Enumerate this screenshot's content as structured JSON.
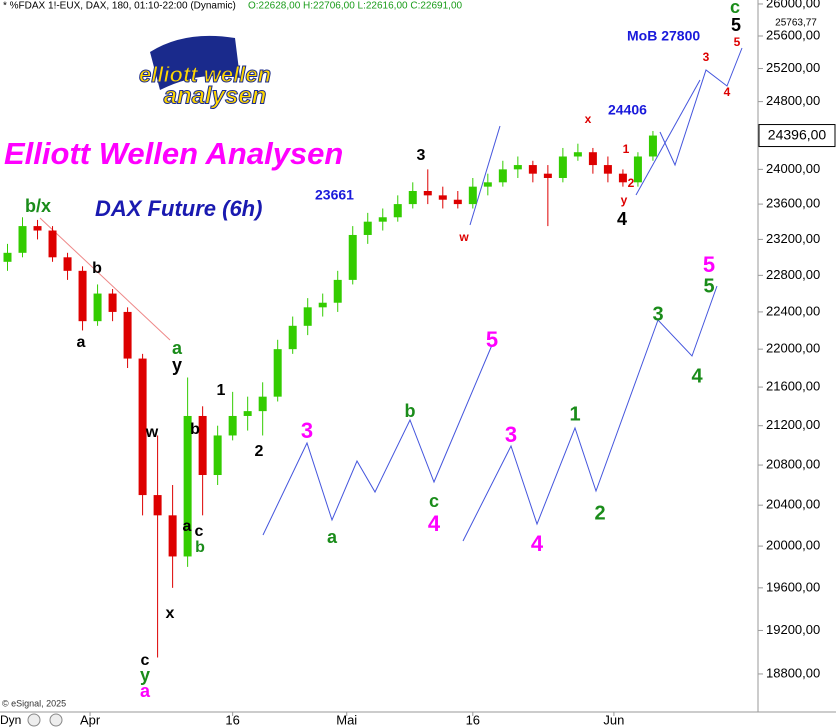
{
  "chart_data": {
    "type": "candlestick",
    "header": {
      "symbol": "* %FDAX 1!-EUX, DAX, 180, 01:10-22:00 (Dynamic)",
      "ohlc": "O:22628,00 H:22706,00 L:22616,00 C:22691,00"
    },
    "title": "Elliott Wellen Analysen",
    "subtitle": "DAX Future (6h)",
    "logo": [
      "elliott wellen",
      "analysen"
    ],
    "copyright": "© eSignal, 2025",
    "mode_label": "Dyn",
    "annotations": [
      "23661",
      "24406",
      "MoB 27800"
    ],
    "annotation_color": "#1a1adb",
    "title_color": "#ff00ff",
    "subtitle_color": "#1a1ab0",
    "up_color": "#33cc00",
    "down_color": "#dd0000",
    "log_scale": true,
    "open": [
      22950,
      23050,
      23350,
      23300,
      23000,
      22850,
      22300,
      22600,
      22400,
      21900,
      20500,
      20300,
      19900,
      21300,
      20700,
      21100,
      21300,
      21350,
      21500,
      22000,
      22250,
      22450,
      22500,
      22750,
      23250,
      23400,
      23450,
      23600,
      23750,
      23700,
      23650,
      23600,
      23800,
      23850,
      24000,
      24050,
      23950,
      23900,
      24150,
      24200,
      24050,
      23950,
      23850,
      24150
    ],
    "high": [
      23150,
      23450,
      23420,
      23350,
      23050,
      22900,
      22700,
      22650,
      22450,
      21950,
      21100,
      20600,
      21700,
      21400,
      21200,
      21550,
      21500,
      21650,
      22100,
      22350,
      22550,
      22600,
      22850,
      23350,
      23500,
      23550,
      23700,
      23850,
      24000,
      23800,
      23750,
      23900,
      23950,
      24100,
      24150,
      24100,
      24050,
      24250,
      24300,
      24250,
      24150,
      24000,
      24200,
      24450
    ],
    "low": [
      22850,
      23000,
      23200,
      22950,
      22750,
      22200,
      22250,
      22300,
      21800,
      20300,
      18950,
      19600,
      19800,
      20300,
      20600,
      21050,
      21150,
      21100,
      21450,
      21950,
      22150,
      22350,
      22400,
      22700,
      23150,
      23300,
      23400,
      23550,
      23600,
      23550,
      23550,
      23550,
      23700,
      23800,
      23900,
      23850,
      23350,
      23850,
      24100,
      23950,
      23850,
      23800,
      23800,
      24100
    ],
    "close": [
      23050,
      23350,
      23300,
      23000,
      22850,
      22300,
      22600,
      22400,
      21900,
      20500,
      20300,
      19900,
      21300,
      20700,
      21100,
      21300,
      21350,
      21500,
      22000,
      22250,
      22450,
      22500,
      22750,
      23250,
      23400,
      23450,
      23600,
      23750,
      23700,
      23650,
      23600,
      23800,
      23850,
      24000,
      24050,
      23950,
      23900,
      24150,
      24200,
      24050,
      23950,
      23850,
      24150,
      24396
    ],
    "last_price": {
      "value": 24396,
      "label": "24396,00"
    },
    "marker_price": {
      "value": 25763.77,
      "label": "25763,77"
    },
    "xlim": [
      -0.5,
      50
    ],
    "xticks": [
      {
        "value": 5.5,
        "label": "Apr"
      },
      {
        "value": 15,
        "label": "16"
      },
      {
        "value": 22.6,
        "label": "Mai"
      },
      {
        "value": 31,
        "label": "16"
      },
      {
        "value": 40.4,
        "label": "Jun"
      }
    ],
    "ylim": [
      18457,
      26050
    ],
    "yticks": [
      {
        "value": 26000,
        "label": "26000,00"
      },
      {
        "value": 25600,
        "label": "25600,00"
      },
      {
        "value": 25200,
        "label": "25200,00"
      },
      {
        "value": 24800,
        "label": "24800,00"
      },
      {
        "value": 24000,
        "label": "24000,00"
      },
      {
        "value": 23600,
        "label": "23600,00"
      },
      {
        "value": 23200,
        "label": "23200,00"
      },
      {
        "value": 22800,
        "label": "22800,00"
      },
      {
        "value": 22400,
        "label": "22400,00"
      },
      {
        "value": 22000,
        "label": "22000,00"
      },
      {
        "value": 21600,
        "label": "21600,00"
      },
      {
        "value": 21200,
        "label": "21200,00"
      },
      {
        "value": 20800,
        "label": "20800,00"
      },
      {
        "value": 20400,
        "label": "20400,00"
      },
      {
        "value": 20000,
        "label": "20000,00"
      },
      {
        "value": 19600,
        "label": "19600,00"
      },
      {
        "value": 19200,
        "label": "19200,00"
      },
      {
        "value": 18800,
        "label": "18800,00"
      }
    ],
    "wave_labels": [
      {
        "text": "b/x",
        "color": "#1a8c1a"
      },
      {
        "text": "b",
        "color": "#000000"
      },
      {
        "text": "a",
        "color": "#000000"
      },
      {
        "text": "a",
        "color": "#1a8c1a"
      },
      {
        "text": "y",
        "color": "#000000"
      },
      {
        "text": "w",
        "color": "#000000"
      },
      {
        "text": "1",
        "color": "#000000"
      },
      {
        "text": "b",
        "color": "#000000"
      },
      {
        "text": "a",
        "color": "#000000"
      },
      {
        "text": "c",
        "color": "#000000"
      },
      {
        "text": "b",
        "color": "#1a8c1a"
      },
      {
        "text": "2",
        "color": "#000000"
      },
      {
        "text": "x",
        "color": "#000000"
      },
      {
        "text": "c",
        "color": "#000000"
      },
      {
        "text": "y",
        "color": "#1a8c1a"
      },
      {
        "text": "a",
        "color": "#ff00ff"
      },
      {
        "text": "3",
        "color": "#000000"
      },
      {
        "text": "w",
        "color": "#dd0000"
      },
      {
        "text": "x",
        "color": "#dd0000"
      },
      {
        "text": "1",
        "color": "#dd0000"
      },
      {
        "text": "2",
        "color": "#dd0000"
      },
      {
        "text": "y",
        "color": "#dd0000"
      },
      {
        "text": "4",
        "color": "#000000"
      },
      {
        "text": "3",
        "color": "#dd0000"
      },
      {
        "text": "4",
        "color": "#dd0000"
      },
      {
        "text": "5",
        "color": "#dd0000"
      },
      {
        "text": "5",
        "color": "#000000"
      },
      {
        "text": "c",
        "color": "#1a8c1a"
      },
      {
        "text": "3",
        "color": "#ff00ff"
      },
      {
        "text": "a",
        "color": "#1a8c1a"
      },
      {
        "text": "b",
        "color": "#1a8c1a"
      },
      {
        "text": "c",
        "color": "#1a8c1a"
      },
      {
        "text": "4",
        "color": "#ff00ff"
      },
      {
        "text": "5",
        "color": "#ff00ff"
      },
      {
        "text": "3",
        "color": "#ff00ff"
      },
      {
        "text": "4",
        "color": "#ff00ff"
      },
      {
        "text": "1",
        "color": "#1a8c1a"
      },
      {
        "text": "2",
        "color": "#1a8c1a"
      },
      {
        "text": "3",
        "color": "#1a8c1a"
      },
      {
        "text": "4",
        "color": "#1a8c1a"
      },
      {
        "text": "5",
        "color": "#ff00ff"
      },
      {
        "text": "5",
        "color": "#1a8c1a"
      }
    ]
  }
}
